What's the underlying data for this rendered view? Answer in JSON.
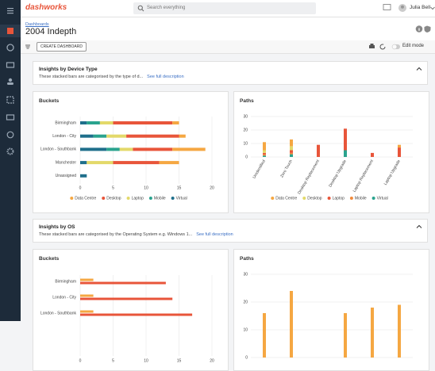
{
  "header": {
    "logo": "dashworks",
    "search_placeholder": "Search everything",
    "user": "Julia Bell"
  },
  "page": {
    "breadcrumb": "Dashboards",
    "title": "2004 Indepth",
    "create_button": "CREATE DASHBOARD",
    "edit_mode": "Edit mode"
  },
  "sections": [
    {
      "title": "Insights by Device Type",
      "description": "These stacked bars are categorised by the type of d...",
      "link": "See full description",
      "chart_data": [
        {
          "type": "hbar",
          "title": "Buckets",
          "stacked": true,
          "grid": true,
          "legend": true,
          "categories": [
            "Birmingham",
            "London - City",
            "London - Southbank",
            "Manchester",
            "Unassigned"
          ],
          "series": [
            {
              "name": "Data Centre",
              "color": "#f5a742",
              "values": [
                1,
                1,
                5,
                3,
                0
              ]
            },
            {
              "name": "Desktop",
              "color": "#e8553a",
              "values": [
                9,
                8,
                6,
                7,
                0
              ]
            },
            {
              "name": "Laptop",
              "color": "#e3d96a",
              "values": [
                2,
                3,
                2,
                4,
                0
              ]
            },
            {
              "name": "Mobile",
              "color": "#2aa38e",
              "values": [
                2,
                2,
                2,
                0,
                0
              ]
            },
            {
              "name": "Virtual",
              "color": "#1f6f8b",
              "values": [
                1,
                2,
                4,
                1,
                1
              ]
            }
          ],
          "xlim": [
            0,
            20
          ],
          "xticks": [
            0,
            5,
            10,
            15,
            20
          ]
        },
        {
          "type": "bar",
          "title": "Paths",
          "stacked": true,
          "grid": true,
          "legend": true,
          "categories": [
            "Unidentified",
            "Zero Touch",
            "Desktop Replacement",
            "Desktop Upgrade",
            "Laptop Replacement",
            "Laptop Upgrade"
          ],
          "series": [
            {
              "name": "Data Centre",
              "color": "#f5a742",
              "values": [
                6,
                5,
                0,
                0,
                0,
                2
              ]
            },
            {
              "name": "Desktop",
              "color": "#e3d96a",
              "values": [
                2,
                3,
                0,
                0,
                0,
                0
              ]
            },
            {
              "name": "Laptop",
              "color": "#e8553a",
              "values": [
                1,
                2,
                9,
                16,
                3,
                7
              ]
            },
            {
              "name": "Mobile",
              "color": "#f08a3c",
              "values": [
                1,
                1,
                0,
                0,
                0,
                0
              ]
            },
            {
              "name": "Virtual",
              "color": "#2aa38e",
              "values": [
                1,
                2,
                0,
                5,
                0,
                0
              ]
            }
          ],
          "ylim": [
            0,
            30
          ],
          "yticks": [
            0,
            10,
            20,
            30
          ]
        }
      ]
    },
    {
      "title": "Insights by OS",
      "description": "These stacked bars are categorised by the Operating System e.g. Windows 1...",
      "link": "See full description",
      "chart_data": [
        {
          "type": "hbar",
          "title": "Buckets",
          "stacked": false,
          "grid": true,
          "legend": false,
          "categories": [
            "Birmingham",
            "London - City",
            "London - Southbank"
          ],
          "series": [
            {
              "color": "#f5a742",
              "values": [
                2,
                2,
                2
              ]
            },
            {
              "color": "#e8553a",
              "values": [
                13,
                14,
                17
              ]
            }
          ],
          "xlim": [
            0,
            20
          ],
          "xticks": [
            0,
            5,
            10,
            15,
            20
          ]
        },
        {
          "type": "bar",
          "title": "Paths",
          "stacked": true,
          "grid": true,
          "legend": false,
          "categories": [
            null,
            null,
            null,
            null,
            null,
            null
          ],
          "series": [
            {
              "color": "#f5a742",
              "values": [
                16,
                24,
                0,
                16,
                18,
                19
              ]
            }
          ],
          "ylim": [
            0,
            30
          ],
          "yticks": [
            0,
            10,
            20,
            30
          ]
        }
      ]
    }
  ]
}
